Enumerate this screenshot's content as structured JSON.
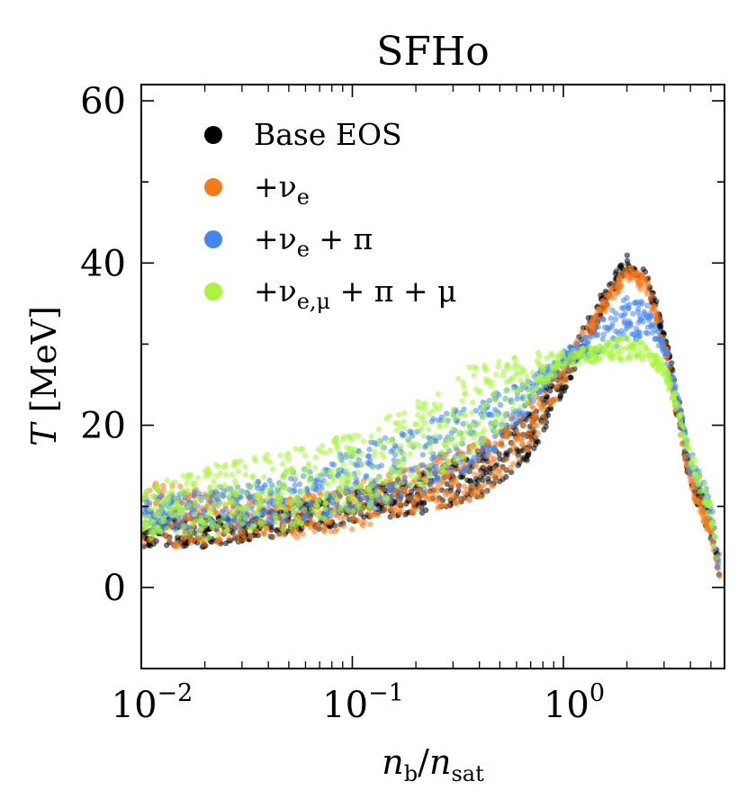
{
  "chart_data": {
    "type": "scatter",
    "title": "SFHo",
    "xlabel": {
      "main": "n",
      "sub1": "b",
      "slash": "/",
      "main2": "n",
      "sub2": "sat"
    },
    "ylabel": {
      "main": "T",
      "unit": " [MeV]"
    },
    "xscale": "log",
    "xlim": [
      0.01,
      5.8
    ],
    "ylim": [
      -10,
      62
    ],
    "x_ticks": [
      {
        "value": 0.01,
        "base": "10",
        "exp": "−2"
      },
      {
        "value": 0.1,
        "base": "10",
        "exp": "−1"
      },
      {
        "value": 1,
        "base": "10",
        "exp": "0"
      }
    ],
    "y_ticks": [
      {
        "value": 0,
        "label": "0"
      },
      {
        "value": 20,
        "label": "20"
      },
      {
        "value": 40,
        "label": "40"
      },
      {
        "value": 60,
        "label": "60"
      }
    ],
    "legend_position": "top-left",
    "grid": false,
    "series": [
      {
        "name": "Base EOS",
        "legend": {
          "pre": "Base EOS",
          "sub": "",
          "post": ""
        },
        "color": "#000000",
        "x": [
          0.01,
          0.02,
          0.05,
          0.1,
          0.2,
          0.4,
          0.7,
          1.0,
          1.5,
          2.0,
          2.5,
          3.0,
          3.5,
          4.0,
          5.0,
          5.5
        ],
        "y_low": [
          5,
          5,
          6.5,
          8,
          9,
          11,
          16,
          24,
          33,
          39,
          37,
          30,
          20,
          12,
          6,
          1
        ],
        "y_high": [
          8,
          9,
          10,
          12,
          14,
          17,
          22,
          28,
          36,
          41,
          39,
          32,
          24,
          15,
          9,
          3
        ]
      },
      {
        "name": "+ν_e",
        "legend": {
          "pre": "+ν",
          "sub": "e",
          "post": ""
        },
        "color": "#f97a1a",
        "x": [
          0.01,
          0.02,
          0.05,
          0.1,
          0.2,
          0.4,
          0.7,
          1.0,
          1.5,
          2.0,
          2.5,
          3.0,
          3.5,
          4.0,
          5.0,
          5.5
        ],
        "y_low": [
          5,
          5,
          6,
          7,
          9,
          11,
          17,
          25,
          33,
          38,
          36,
          29,
          20,
          12,
          6,
          1
        ],
        "y_high": [
          14,
          12,
          11,
          13,
          15,
          18,
          23,
          28,
          35,
          40,
          38,
          31,
          22,
          14,
          8,
          3
        ]
      },
      {
        "name": "+ν_e + π",
        "legend": {
          "pre": "+ν",
          "sub": "e",
          "post": " + π"
        },
        "color": "#4286f4",
        "x": [
          0.01,
          0.02,
          0.05,
          0.1,
          0.2,
          0.4,
          0.7,
          1.0,
          1.5,
          2.0,
          2.5,
          3.0,
          3.5,
          4.0,
          5.0,
          5.5
        ],
        "y_low": [
          7,
          7,
          8,
          9,
          11,
          15,
          22,
          27,
          29,
          30,
          31,
          29,
          22,
          14,
          8,
          0
        ],
        "y_high": [
          11,
          12,
          14,
          17,
          20,
          23,
          26,
          29,
          33,
          36,
          35,
          30,
          24,
          17,
          11,
          4
        ]
      },
      {
        "name": "+ν_e,μ + π + μ",
        "legend": {
          "pre": "+ν",
          "sub": "e,μ",
          "post": " + π + μ"
        },
        "color": "#a8f53a",
        "x": [
          0.01,
          0.02,
          0.05,
          0.1,
          0.2,
          0.4,
          0.7,
          1.0,
          1.5,
          2.0,
          2.5,
          3.0,
          3.5,
          4.0,
          5.0,
          5.5
        ],
        "y_low": [
          6,
          6,
          7,
          9,
          12,
          17,
          23,
          27,
          28,
          28,
          28,
          26,
          21,
          15,
          8,
          0
        ],
        "y_high": [
          12,
          15,
          17,
          19,
          23,
          28,
          29,
          29,
          30,
          31,
          30,
          28,
          23,
          17,
          11,
          3
        ]
      }
    ]
  }
}
